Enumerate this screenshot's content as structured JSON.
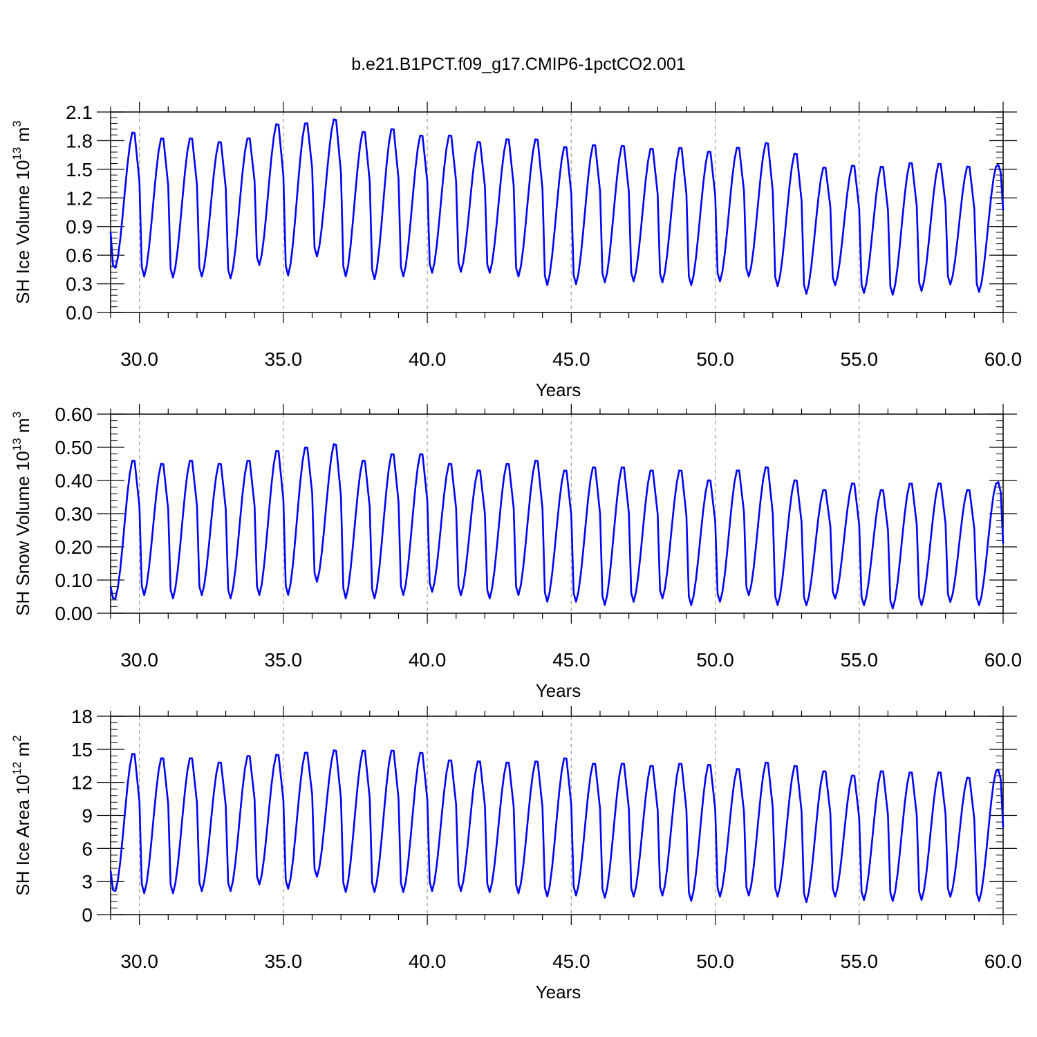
{
  "figure": {
    "title": "b.e21.B1PCT.f09_g17.CMIP6-1pctCO2.001"
  },
  "chart_data": [
    {
      "type": "line",
      "xlabel": "Years",
      "ylabel": "SH Ice Volume 10",
      "ylabel_exponent": "13",
      "ylabel_unit": " m",
      "ylabel_unit_exponent": "3",
      "xlim": [
        29.0,
        60.0
      ],
      "ylim": [
        0.0,
        2.1
      ],
      "xticks": [
        30.0,
        35.0,
        40.0,
        45.0,
        50.0,
        55.0,
        60.0
      ],
      "xtick_labels": [
        "30.0",
        "35.0",
        "40.0",
        "45.0",
        "50.0",
        "55.0",
        "60.0"
      ],
      "yticks": [
        0.0,
        0.3,
        0.6,
        0.9,
        1.2,
        1.5,
        1.8,
        2.1
      ],
      "ytick_labels": [
        "0.0",
        "0.3",
        "0.6",
        "0.9",
        "1.2",
        "1.5",
        "1.8",
        "2.1"
      ],
      "yminor_step": 0.06,
      "grid": "dashed vertical lines at major x ticks",
      "series": [
        {
          "color": "#0000ff",
          "start_year": 29.0,
          "start_value": 0.84,
          "end_year": 60.0,
          "end_value": 1.07,
          "cycles": [
            {
              "year": 29,
              "max": 1.92,
              "min": 0.45
            },
            {
              "year": 30,
              "max": 1.86,
              "min": 0.36
            },
            {
              "year": 31,
              "max": 1.86,
              "min": 0.35
            },
            {
              "year": 32,
              "max": 1.82,
              "min": 0.36
            },
            {
              "year": 33,
              "max": 1.86,
              "min": 0.34
            },
            {
              "year": 34,
              "max": 2.01,
              "min": 0.48
            },
            {
              "year": 35,
              "max": 2.02,
              "min": 0.37
            },
            {
              "year": 36,
              "max": 2.06,
              "min": 0.57
            },
            {
              "year": 37,
              "max": 1.93,
              "min": 0.36
            },
            {
              "year": 38,
              "max": 1.96,
              "min": 0.33
            },
            {
              "year": 39,
              "max": 1.89,
              "min": 0.36
            },
            {
              "year": 40,
              "max": 1.89,
              "min": 0.4
            },
            {
              "year": 41,
              "max": 1.82,
              "min": 0.41
            },
            {
              "year": 42,
              "max": 1.85,
              "min": 0.4
            },
            {
              "year": 43,
              "max": 1.85,
              "min": 0.36
            },
            {
              "year": 44,
              "max": 1.77,
              "min": 0.27
            },
            {
              "year": 45,
              "max": 1.79,
              "min": 0.28
            },
            {
              "year": 46,
              "max": 1.78,
              "min": 0.3
            },
            {
              "year": 47,
              "max": 1.75,
              "min": 0.31
            },
            {
              "year": 48,
              "max": 1.76,
              "min": 0.3
            },
            {
              "year": 49,
              "max": 1.72,
              "min": 0.27
            },
            {
              "year": 50,
              "max": 1.76,
              "min": 0.31
            },
            {
              "year": 51,
              "max": 1.81,
              "min": 0.36
            },
            {
              "year": 52,
              "max": 1.7,
              "min": 0.26
            },
            {
              "year": 53,
              "max": 1.55,
              "min": 0.18
            },
            {
              "year": 54,
              "max": 1.57,
              "min": 0.27
            },
            {
              "year": 55,
              "max": 1.56,
              "min": 0.19
            },
            {
              "year": 56,
              "max": 1.6,
              "min": 0.17
            },
            {
              "year": 57,
              "max": 1.59,
              "min": 0.21
            },
            {
              "year": 58,
              "max": 1.56,
              "min": 0.28
            },
            {
              "year": 59,
              "max": 1.56,
              "min": 0.2
            }
          ]
        }
      ]
    },
    {
      "type": "line",
      "xlabel": "Years",
      "ylabel": "SH Snow Volume 10",
      "ylabel_exponent": "13",
      "ylabel_unit": " m",
      "ylabel_unit_exponent": "3",
      "xlim": [
        29.0,
        60.0
      ],
      "ylim": [
        0.0,
        0.6
      ],
      "xticks": [
        30.0,
        35.0,
        40.0,
        45.0,
        50.0,
        55.0,
        60.0
      ],
      "xtick_labels": [
        "30.0",
        "35.0",
        "40.0",
        "45.0",
        "50.0",
        "55.0",
        "60.0"
      ],
      "yticks": [
        0.0,
        0.1,
        0.2,
        0.3,
        0.4,
        0.5,
        0.6
      ],
      "ytick_labels": [
        "0.00",
        "0.10",
        "0.20",
        "0.30",
        "0.40",
        "0.50",
        "0.60"
      ],
      "yminor_step": 0.02,
      "grid": "dashed vertical lines at major x ticks",
      "series": [
        {
          "color": "#0000ff",
          "start_year": 29.0,
          "start_value": 0.08,
          "end_year": 60.0,
          "end_value": 0.21,
          "cycles": [
            {
              "year": 29,
              "max": 0.47,
              "min": 0.04
            },
            {
              "year": 30,
              "max": 0.46,
              "min": 0.05
            },
            {
              "year": 31,
              "max": 0.47,
              "min": 0.04
            },
            {
              "year": 32,
              "max": 0.46,
              "min": 0.05
            },
            {
              "year": 33,
              "max": 0.47,
              "min": 0.04
            },
            {
              "year": 34,
              "max": 0.5,
              "min": 0.05
            },
            {
              "year": 35,
              "max": 0.51,
              "min": 0.05
            },
            {
              "year": 36,
              "max": 0.52,
              "min": 0.09
            },
            {
              "year": 37,
              "max": 0.47,
              "min": 0.04
            },
            {
              "year": 38,
              "max": 0.49,
              "min": 0.04
            },
            {
              "year": 39,
              "max": 0.49,
              "min": 0.05
            },
            {
              "year": 40,
              "max": 0.46,
              "min": 0.06
            },
            {
              "year": 41,
              "max": 0.44,
              "min": 0.05
            },
            {
              "year": 42,
              "max": 0.46,
              "min": 0.04
            },
            {
              "year": 43,
              "max": 0.47,
              "min": 0.05
            },
            {
              "year": 44,
              "max": 0.44,
              "min": 0.03
            },
            {
              "year": 45,
              "max": 0.45,
              "min": 0.03
            },
            {
              "year": 46,
              "max": 0.45,
              "min": 0.02
            },
            {
              "year": 47,
              "max": 0.44,
              "min": 0.03
            },
            {
              "year": 48,
              "max": 0.44,
              "min": 0.04
            },
            {
              "year": 49,
              "max": 0.41,
              "min": 0.02
            },
            {
              "year": 50,
              "max": 0.44,
              "min": 0.03
            },
            {
              "year": 51,
              "max": 0.45,
              "min": 0.05
            },
            {
              "year": 52,
              "max": 0.41,
              "min": 0.02
            },
            {
              "year": 53,
              "max": 0.38,
              "min": 0.02
            },
            {
              "year": 54,
              "max": 0.4,
              "min": 0.04
            },
            {
              "year": 55,
              "max": 0.38,
              "min": 0.02
            },
            {
              "year": 56,
              "max": 0.4,
              "min": 0.01
            },
            {
              "year": 57,
              "max": 0.4,
              "min": 0.02
            },
            {
              "year": 58,
              "max": 0.38,
              "min": 0.03
            },
            {
              "year": 59,
              "max": 0.4,
              "min": 0.02
            }
          ]
        }
      ]
    },
    {
      "type": "line",
      "xlabel": "Years",
      "ylabel": "SH Ice Area 10",
      "ylabel_exponent": "12",
      "ylabel_unit": " m",
      "ylabel_unit_exponent": "2",
      "xlim": [
        29.0,
        60.0
      ],
      "ylim": [
        0,
        18
      ],
      "xticks": [
        30.0,
        35.0,
        40.0,
        45.0,
        50.0,
        55.0,
        60.0
      ],
      "xtick_labels": [
        "30.0",
        "35.0",
        "40.0",
        "45.0",
        "50.0",
        "55.0",
        "60.0"
      ],
      "yticks": [
        0,
        3,
        6,
        9,
        12,
        15,
        18
      ],
      "ytick_labels": [
        "0",
        "3",
        "6",
        "9",
        "12",
        "15",
        "18"
      ],
      "yminor_step": 0.6,
      "grid": "dashed vertical lines at major x ticks",
      "series": [
        {
          "color": "#0000ff",
          "start_year": 29.0,
          "start_value": 4.0,
          "end_year": 60.0,
          "end_value": 7.9,
          "cycles": [
            {
              "year": 29,
              "max": 14.9,
              "min": 2.0
            },
            {
              "year": 30,
              "max": 14.5,
              "min": 1.8
            },
            {
              "year": 31,
              "max": 14.5,
              "min": 1.8
            },
            {
              "year": 32,
              "max": 14.1,
              "min": 2.0
            },
            {
              "year": 33,
              "max": 14.7,
              "min": 2.0
            },
            {
              "year": 34,
              "max": 14.8,
              "min": 2.6
            },
            {
              "year": 35,
              "max": 15.0,
              "min": 2.2
            },
            {
              "year": 36,
              "max": 15.2,
              "min": 3.3
            },
            {
              "year": 37,
              "max": 15.2,
              "min": 1.9
            },
            {
              "year": 38,
              "max": 15.2,
              "min": 1.9
            },
            {
              "year": 39,
              "max": 15.0,
              "min": 1.9
            },
            {
              "year": 40,
              "max": 14.3,
              "min": 2.0
            },
            {
              "year": 41,
              "max": 14.2,
              "min": 2.0
            },
            {
              "year": 42,
              "max": 14.1,
              "min": 1.9
            },
            {
              "year": 43,
              "max": 14.2,
              "min": 1.8
            },
            {
              "year": 44,
              "max": 14.5,
              "min": 1.5
            },
            {
              "year": 45,
              "max": 14.0,
              "min": 1.6
            },
            {
              "year": 46,
              "max": 14.0,
              "min": 1.4
            },
            {
              "year": 47,
              "max": 13.8,
              "min": 1.5
            },
            {
              "year": 48,
              "max": 14.0,
              "min": 1.6
            },
            {
              "year": 49,
              "max": 13.9,
              "min": 1.1
            },
            {
              "year": 50,
              "max": 13.5,
              "min": 1.5
            },
            {
              "year": 51,
              "max": 14.1,
              "min": 1.6
            },
            {
              "year": 52,
              "max": 13.8,
              "min": 1.5
            },
            {
              "year": 53,
              "max": 13.3,
              "min": 1.0
            },
            {
              "year": 54,
              "max": 12.9,
              "min": 1.5
            },
            {
              "year": 55,
              "max": 13.3,
              "min": 1.2
            },
            {
              "year": 56,
              "max": 13.2,
              "min": 1.1
            },
            {
              "year": 57,
              "max": 13.2,
              "min": 1.2
            },
            {
              "year": 58,
              "max": 12.7,
              "min": 1.5
            },
            {
              "year": 59,
              "max": 13.3,
              "min": 1.1
            }
          ]
        }
      ]
    }
  ]
}
